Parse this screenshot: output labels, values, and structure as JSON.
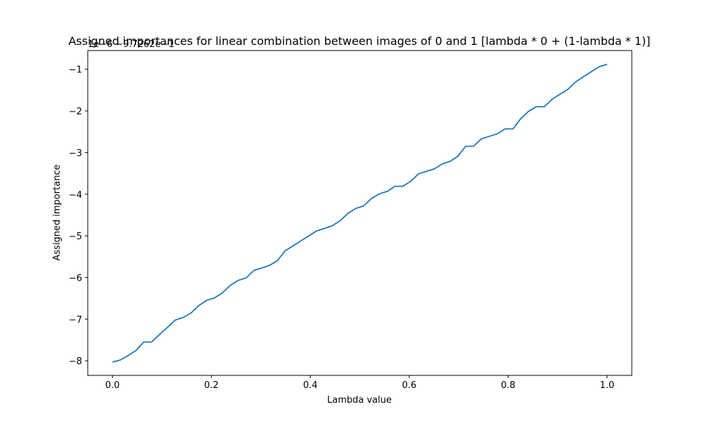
{
  "chart_data": {
    "type": "line",
    "title": "Assigned importances for linear combination between images of 0 and 1 [lambda * 0 + (1-lambda * 1)]",
    "xlabel": "Lambda value",
    "ylabel": "Assigned importance",
    "offset_text": "1e−6 −9.7262e−1",
    "xlim": [
      -0.05,
      1.05
    ],
    "ylim": [
      -8.35,
      -0.55
    ],
    "xticks": [
      0.0,
      0.2,
      0.4,
      0.6,
      0.8,
      1.0
    ],
    "xtick_labels": [
      "0.0",
      "0.2",
      "0.4",
      "0.6",
      "0.8",
      "1.0"
    ],
    "yticks": [
      -8,
      -7,
      -6,
      -5,
      -4,
      -3,
      -2,
      -1
    ],
    "ytick_labels": [
      "−8",
      "−7",
      "−6",
      "−5",
      "−4",
      "−3",
      "−2",
      "−1"
    ],
    "grid": false,
    "series": [
      {
        "color": "#1f77b4",
        "x": [
          0.0,
          0.016,
          0.032,
          0.048,
          0.063,
          0.079,
          0.095,
          0.111,
          0.127,
          0.143,
          0.159,
          0.175,
          0.19,
          0.206,
          0.222,
          0.238,
          0.254,
          0.27,
          0.286,
          0.302,
          0.317,
          0.333,
          0.349,
          0.365,
          0.381,
          0.397,
          0.413,
          0.429,
          0.444,
          0.46,
          0.476,
          0.492,
          0.508,
          0.524,
          0.54,
          0.556,
          0.571,
          0.587,
          0.603,
          0.619,
          0.635,
          0.651,
          0.667,
          0.683,
          0.698,
          0.714,
          0.73,
          0.746,
          0.762,
          0.778,
          0.794,
          0.81,
          0.825,
          0.841,
          0.857,
          0.873,
          0.889,
          0.905,
          0.921,
          0.937,
          0.952,
          0.968,
          0.984,
          1.0
        ],
        "y": [
          -8.03,
          -7.98,
          -7.87,
          -7.75,
          -7.55,
          -7.55,
          -7.37,
          -7.2,
          -7.02,
          -6.96,
          -6.85,
          -6.67,
          -6.55,
          -6.49,
          -6.37,
          -6.19,
          -6.07,
          -6.01,
          -5.83,
          -5.77,
          -5.71,
          -5.6,
          -5.36,
          -5.24,
          -5.12,
          -5.0,
          -4.88,
          -4.82,
          -4.76,
          -4.64,
          -4.46,
          -4.34,
          -4.28,
          -4.1,
          -3.99,
          -3.93,
          -3.81,
          -3.81,
          -3.69,
          -3.51,
          -3.45,
          -3.39,
          -3.27,
          -3.21,
          -3.09,
          -2.85,
          -2.85,
          -2.67,
          -2.61,
          -2.55,
          -2.43,
          -2.43,
          -2.19,
          -2.01,
          -1.9,
          -1.9,
          -1.72,
          -1.6,
          -1.48,
          -1.3,
          -1.18,
          -1.06,
          -0.94,
          -0.88
        ]
      }
    ]
  }
}
